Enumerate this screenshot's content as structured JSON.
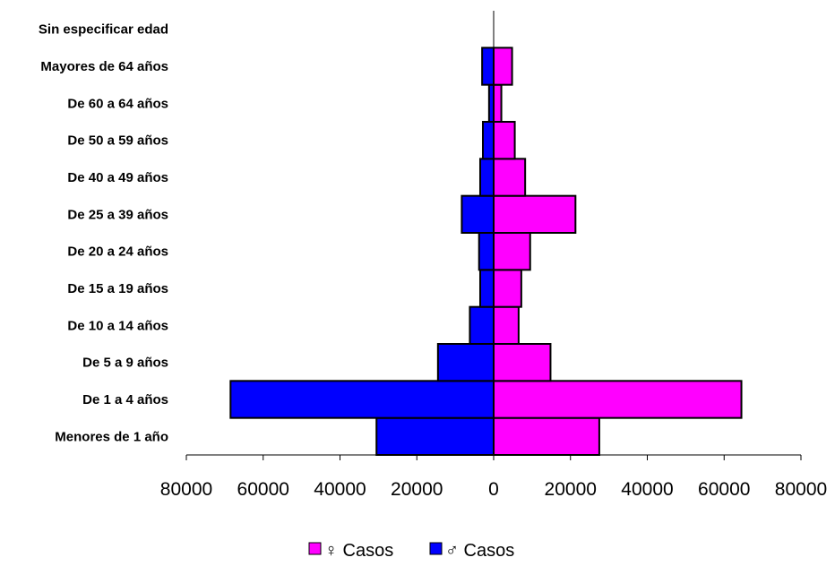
{
  "chart_data": {
    "type": "bar",
    "orientation": "horizontal",
    "layout": "population-pyramid",
    "categories": [
      "Menores de 1 año",
      "De 1 a 4 años",
      "De 5 a 9 años",
      "De 10 a 14 años",
      "De 15 a 19 años",
      "De 20 a 24 años",
      "De 25 a 39 años",
      "De 40 a 49 años",
      "De 50 a 59 años",
      "De 60 a 64 años",
      "Mayores de 64 años",
      "Sin especificar edad"
    ],
    "series": [
      {
        "name": "♀ Casos",
        "color": "#ff00ff",
        "side": "right",
        "values": [
          27500,
          64500,
          14800,
          6500,
          7200,
          9500,
          21300,
          8200,
          5500,
          2000,
          4800,
          0
        ]
      },
      {
        "name": "♂ Casos",
        "color": "#0000ff",
        "side": "left",
        "values": [
          30500,
          68500,
          14500,
          6200,
          3500,
          3800,
          8300,
          3500,
          2800,
          1200,
          3000,
          0
        ]
      }
    ],
    "x_ticks": [
      "80000",
      "60000",
      "40000",
      "20000",
      "0",
      "20000",
      "40000",
      "60000",
      "80000"
    ],
    "xlim": [
      -80000,
      80000
    ],
    "title": "",
    "xlabel": "",
    "ylabel": "",
    "grid": false,
    "legend": {
      "position": "bottom",
      "entries": [
        "♀ Casos",
        "♂ Casos"
      ]
    }
  }
}
